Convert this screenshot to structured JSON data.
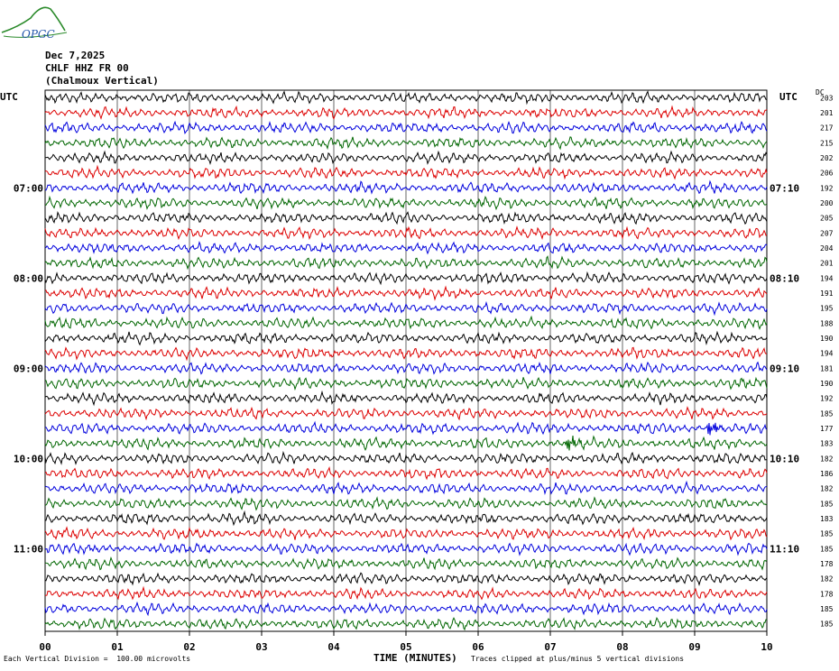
{
  "logo": {
    "text": "OPGC"
  },
  "header": {
    "date": "Dec 7,2025",
    "station": "CHLF HHZ FR 00",
    "location": "(Chalmoux Vertical)"
  },
  "left_axis_label": "UTC",
  "right_axis_label": "UTC",
  "dc_label": "DC",
  "footer": {
    "xlabel": "TIME (MINUTES)",
    "scale_note": "Each Vertical Division =  100.00 microvolts",
    "clip_note": "Traces clipped at plus/minus 5 vertical divisions"
  },
  "colors": {
    "trace_cycle": [
      "#000000",
      "#dd0000",
      "#0000dd",
      "#006600"
    ],
    "grid": "#000000"
  },
  "chart_data": {
    "type": "line",
    "title": "",
    "xlabel": "TIME (MINUTES)",
    "ylabel": "",
    "xlim": [
      0,
      10
    ],
    "xticks": [
      "00",
      "01",
      "02",
      "03",
      "04",
      "05",
      "06",
      "07",
      "08",
      "09",
      "10"
    ],
    "left_hour_labels": [
      {
        "row": 6,
        "label": "07:00"
      },
      {
        "row": 12,
        "label": "08:00"
      },
      {
        "row": 18,
        "label": "09:00"
      },
      {
        "row": 24,
        "label": "10:00"
      },
      {
        "row": 30,
        "label": "11:00"
      }
    ],
    "right_hour_labels": [
      {
        "row": 6,
        "label": "07:10"
      },
      {
        "row": 12,
        "label": "08:10"
      },
      {
        "row": 18,
        "label": "09:10"
      },
      {
        "row": 24,
        "label": "10:10"
      },
      {
        "row": 30,
        "label": "11:10"
      }
    ],
    "dc_offsets": [
      203,
      201,
      217,
      215,
      202,
      206,
      192,
      200,
      205,
      207,
      204,
      201,
      194,
      191,
      195,
      188,
      190,
      194,
      181,
      190,
      192,
      185,
      177,
      183,
      182,
      186,
      182,
      185,
      183,
      185,
      185,
      178,
      182,
      178,
      185,
      185
    ],
    "events": [
      {
        "row": 22,
        "minute": 9.2,
        "amplitude": "high"
      },
      {
        "row": 23,
        "minute": 7.25,
        "amplitude": "high"
      }
    ]
  }
}
